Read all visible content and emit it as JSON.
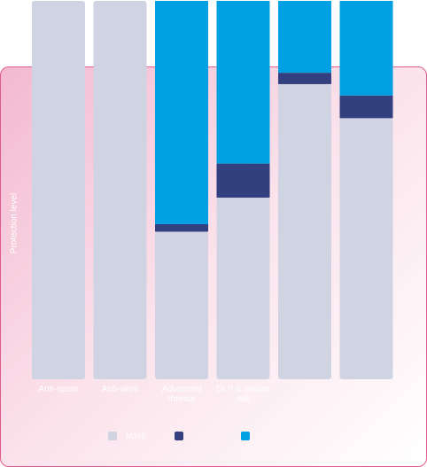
{
  "chart_data": {
    "type": "stacked_bar",
    "y_label": "Protection level",
    "categories": [
      "Anti-spam",
      "Anti-virus",
      "Advanced threats",
      "DLP & insider risk",
      null,
      null
    ],
    "series": [
      {
        "name": "M365",
        "color": "#d0d3e2",
        "values": [
          100,
          100,
          39,
          48,
          78,
          69
        ]
      },
      {
        "name": null,
        "color": "#33407f",
        "values": [
          0,
          0,
          2,
          9,
          3,
          6
        ]
      },
      {
        "name": null,
        "color": "#00a0e3",
        "values": [
          0,
          0,
          59,
          43,
          19,
          25
        ]
      }
    ],
    "ylim": [
      0,
      100
    ]
  }
}
